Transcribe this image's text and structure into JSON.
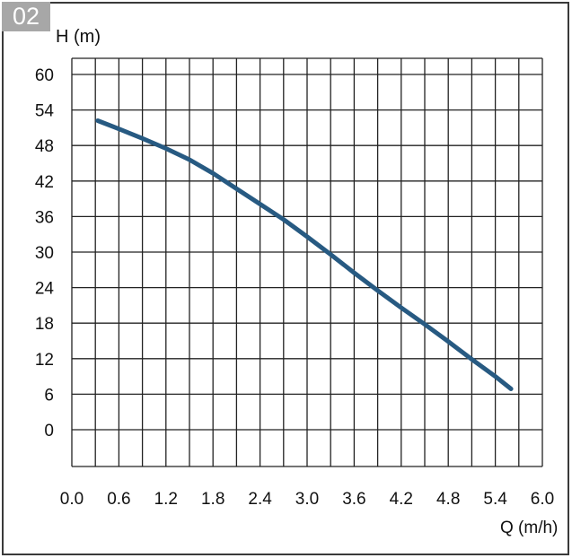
{
  "badge": "02",
  "chart_data": {
    "type": "line",
    "title": "",
    "xlabel": "Q (m/h)",
    "ylabel": "H (m)",
    "xlim": [
      0.0,
      6.0
    ],
    "ylim": [
      0,
      60
    ],
    "x_ticks": [
      "0.0",
      "0.6",
      "1.2",
      "1.8",
      "2.4",
      "3.0",
      "3.6",
      "4.2",
      "4.8",
      "5.4",
      "6.0"
    ],
    "y_ticks": [
      "60",
      "54",
      "48",
      "42",
      "36",
      "30",
      "24",
      "18",
      "12",
      "6",
      "0"
    ],
    "grid": true,
    "line_color": "#275a82",
    "series": [
      {
        "x": [
          0.33,
          0.6,
          0.9,
          1.2,
          1.5,
          1.8,
          2.1,
          2.4,
          2.7,
          3.0,
          3.3,
          3.6,
          3.9,
          4.2,
          4.5,
          4.8,
          5.1,
          5.4,
          5.6
        ],
        "y": [
          52.2,
          50.8,
          49.2,
          47.5,
          45.6,
          43.3,
          40.7,
          38.1,
          35.5,
          32.6,
          29.6,
          26.5,
          23.5,
          20.6,
          17.8,
          14.9,
          11.9,
          9.0,
          6.9
        ]
      }
    ]
  }
}
